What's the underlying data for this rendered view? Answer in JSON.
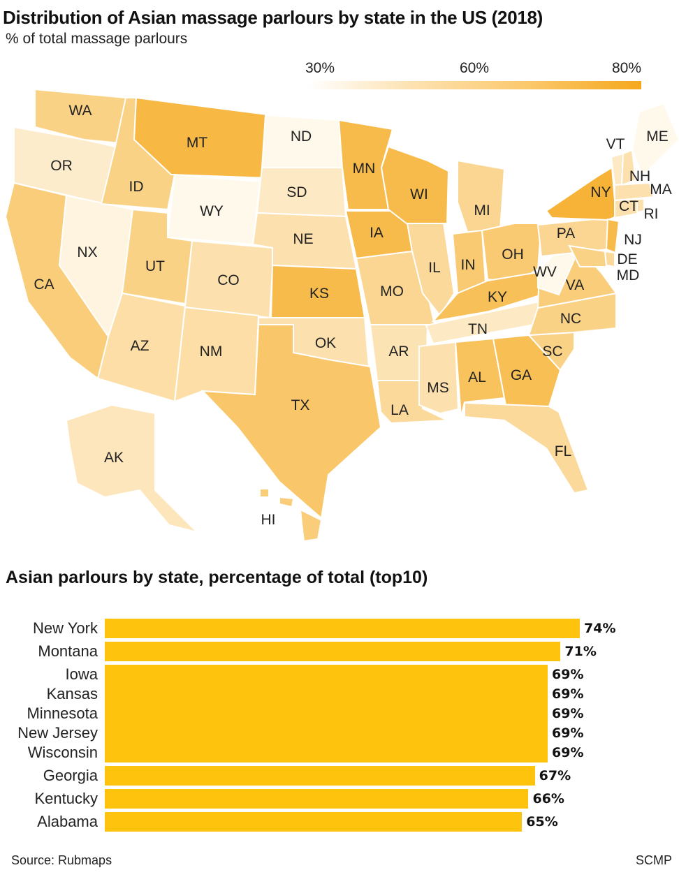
{
  "title": "Distribution of Asian massage parlours by state in the US (2018)",
  "subtitle": "% of total massage parlours",
  "legend": {
    "ticks": [
      "30%",
      "60%",
      "80%"
    ],
    "min": 30,
    "max": 80,
    "color_low": "#fff9ec",
    "color_high": "#f5aa1f"
  },
  "chart_data": [
    {
      "type": "choropleth",
      "title": "Distribution of Asian massage parlours by state in the US (2018)",
      "unit": "% of total massage parlours",
      "states": [
        {
          "code": "WA",
          "value": 55
        },
        {
          "code": "OR",
          "value": 38
        },
        {
          "code": "CA",
          "value": 58
        },
        {
          "code": "NX",
          "value": 33
        },
        {
          "code": "ID",
          "value": 55
        },
        {
          "code": "MT",
          "value": 71
        },
        {
          "code": "WY",
          "value": 25
        },
        {
          "code": "UT",
          "value": 55
        },
        {
          "code": "CO",
          "value": 45
        },
        {
          "code": "AZ",
          "value": 47
        },
        {
          "code": "NM",
          "value": 47
        },
        {
          "code": "ND",
          "value": 30
        },
        {
          "code": "SD",
          "value": 40
        },
        {
          "code": "NE",
          "value": 45
        },
        {
          "code": "KS",
          "value": 69
        },
        {
          "code": "OK",
          "value": 45
        },
        {
          "code": "TX",
          "value": 62
        },
        {
          "code": "MN",
          "value": 69
        },
        {
          "code": "IA",
          "value": 69
        },
        {
          "code": "MO",
          "value": 52
        },
        {
          "code": "AR",
          "value": 44
        },
        {
          "code": "LA",
          "value": 50
        },
        {
          "code": "WI",
          "value": 69
        },
        {
          "code": "IL",
          "value": 50
        },
        {
          "code": "MI",
          "value": 52
        },
        {
          "code": "IN",
          "value": 60
        },
        {
          "code": "OH",
          "value": 60
        },
        {
          "code": "KY",
          "value": 66
        },
        {
          "code": "TN",
          "value": 40
        },
        {
          "code": "MS",
          "value": 45
        },
        {
          "code": "AL",
          "value": 65
        },
        {
          "code": "GA",
          "value": 67
        },
        {
          "code": "FL",
          "value": 50
        },
        {
          "code": "SC",
          "value": 55
        },
        {
          "code": "NC",
          "value": 55
        },
        {
          "code": "VA",
          "value": 58
        },
        {
          "code": "WV",
          "value": 25
        },
        {
          "code": "PA",
          "value": 52
        },
        {
          "code": "NY",
          "value": 74
        },
        {
          "code": "NJ",
          "value": 69
        },
        {
          "code": "DE",
          "value": 50
        },
        {
          "code": "MD",
          "value": 55
        },
        {
          "code": "VT",
          "value": 40
        },
        {
          "code": "NH",
          "value": 45
        },
        {
          "code": "ME",
          "value": 30
        },
        {
          "code": "MA",
          "value": 45
        },
        {
          "code": "CT",
          "value": 45
        },
        {
          "code": "RI",
          "value": 45
        },
        {
          "code": "AK",
          "value": 42
        },
        {
          "code": "HI",
          "value": 58
        }
      ]
    },
    {
      "type": "bar",
      "title": "Asian parlours by state, percentage of total (top10)",
      "categories": [
        "New York",
        "Montana",
        "Iowa",
        "Kansas",
        "Minnesota",
        "New Jersey",
        "Wisconsin",
        "Georgia",
        "Kentucky",
        "Alabama"
      ],
      "values": [
        74,
        71,
        69,
        69,
        69,
        69,
        69,
        67,
        66,
        65
      ],
      "labels": [
        "74%",
        "71%",
        "69%",
        "69%",
        "69%",
        "69%",
        "69%",
        "67%",
        "66%",
        "65%"
      ],
      "xlim": [
        0,
        80
      ],
      "color": "#fdc30d"
    }
  ],
  "footer": {
    "source": "Source: Rubmaps",
    "credit": "SCMP"
  }
}
